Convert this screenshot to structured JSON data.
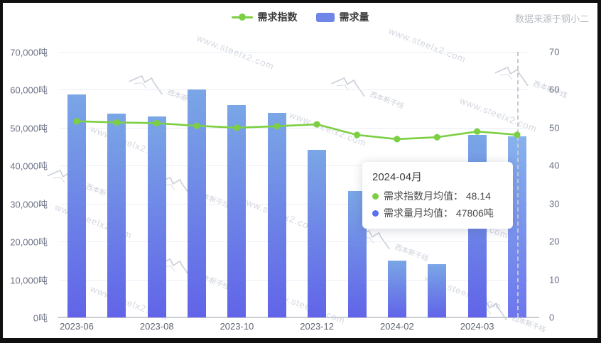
{
  "legend": {
    "items": [
      {
        "label": "需求指数",
        "type": "line",
        "color": "#7ccf43"
      },
      {
        "label": "需求量",
        "type": "bar",
        "color": "#6e86e8"
      }
    ]
  },
  "source_label": "数据来源于钢小二",
  "watermark": {
    "url_text": "www.steelx2.com",
    "brand_text": "西本新干线"
  },
  "tooltip": {
    "title": "2024-04月",
    "rows": [
      {
        "marker_color": "#7ccf43",
        "text": "需求指数月均值： 48.14"
      },
      {
        "marker_color": "#5a6ef0",
        "text": "需求量月均值： 47806吨"
      }
    ]
  },
  "chart_data": {
    "type": "combo-bar-line",
    "bar_count": 12,
    "x_ticks": [
      {
        "label": "2023-06",
        "bar_index": 0
      },
      {
        "label": "2023-08",
        "bar_index": 2
      },
      {
        "label": "2023-10",
        "bar_index": 4
      },
      {
        "label": "2023-12",
        "bar_index": 6
      },
      {
        "label": "2024-02",
        "bar_index": 8
      },
      {
        "label": "2024-03",
        "bar_index": 10
      }
    ],
    "hover_index": 11,
    "hover_label": "2024-04月",
    "series": [
      {
        "name": "需求量",
        "type": "bar",
        "axis": "left",
        "color_top": "#7aa6e6",
        "color_bottom": "#6164e8",
        "values": [
          58800,
          53700,
          53000,
          60000,
          56000,
          54000,
          44100,
          33400,
          15000,
          14000,
          48100,
          47806
        ]
      },
      {
        "name": "需求指数",
        "type": "line",
        "axis": "right",
        "color": "#7ccf43",
        "values": [
          51.7,
          51.4,
          51.2,
          50.5,
          50.0,
          50.4,
          50.9,
          48.1,
          47.0,
          47.5,
          49.0,
          48.14
        ]
      }
    ],
    "left_axis": {
      "min": 0,
      "max": 70000,
      "ticks": [
        "0吨",
        "10,000吨",
        "20,000吨",
        "30,000吨",
        "40,000吨",
        "50,000吨",
        "60,000吨",
        "70,000吨"
      ]
    },
    "right_axis": {
      "min": 0,
      "max": 70,
      "ticks": [
        "0",
        "10",
        "20",
        "30",
        "40",
        "50",
        "60",
        "70"
      ]
    },
    "grid": true,
    "legend_position": "top-center"
  }
}
